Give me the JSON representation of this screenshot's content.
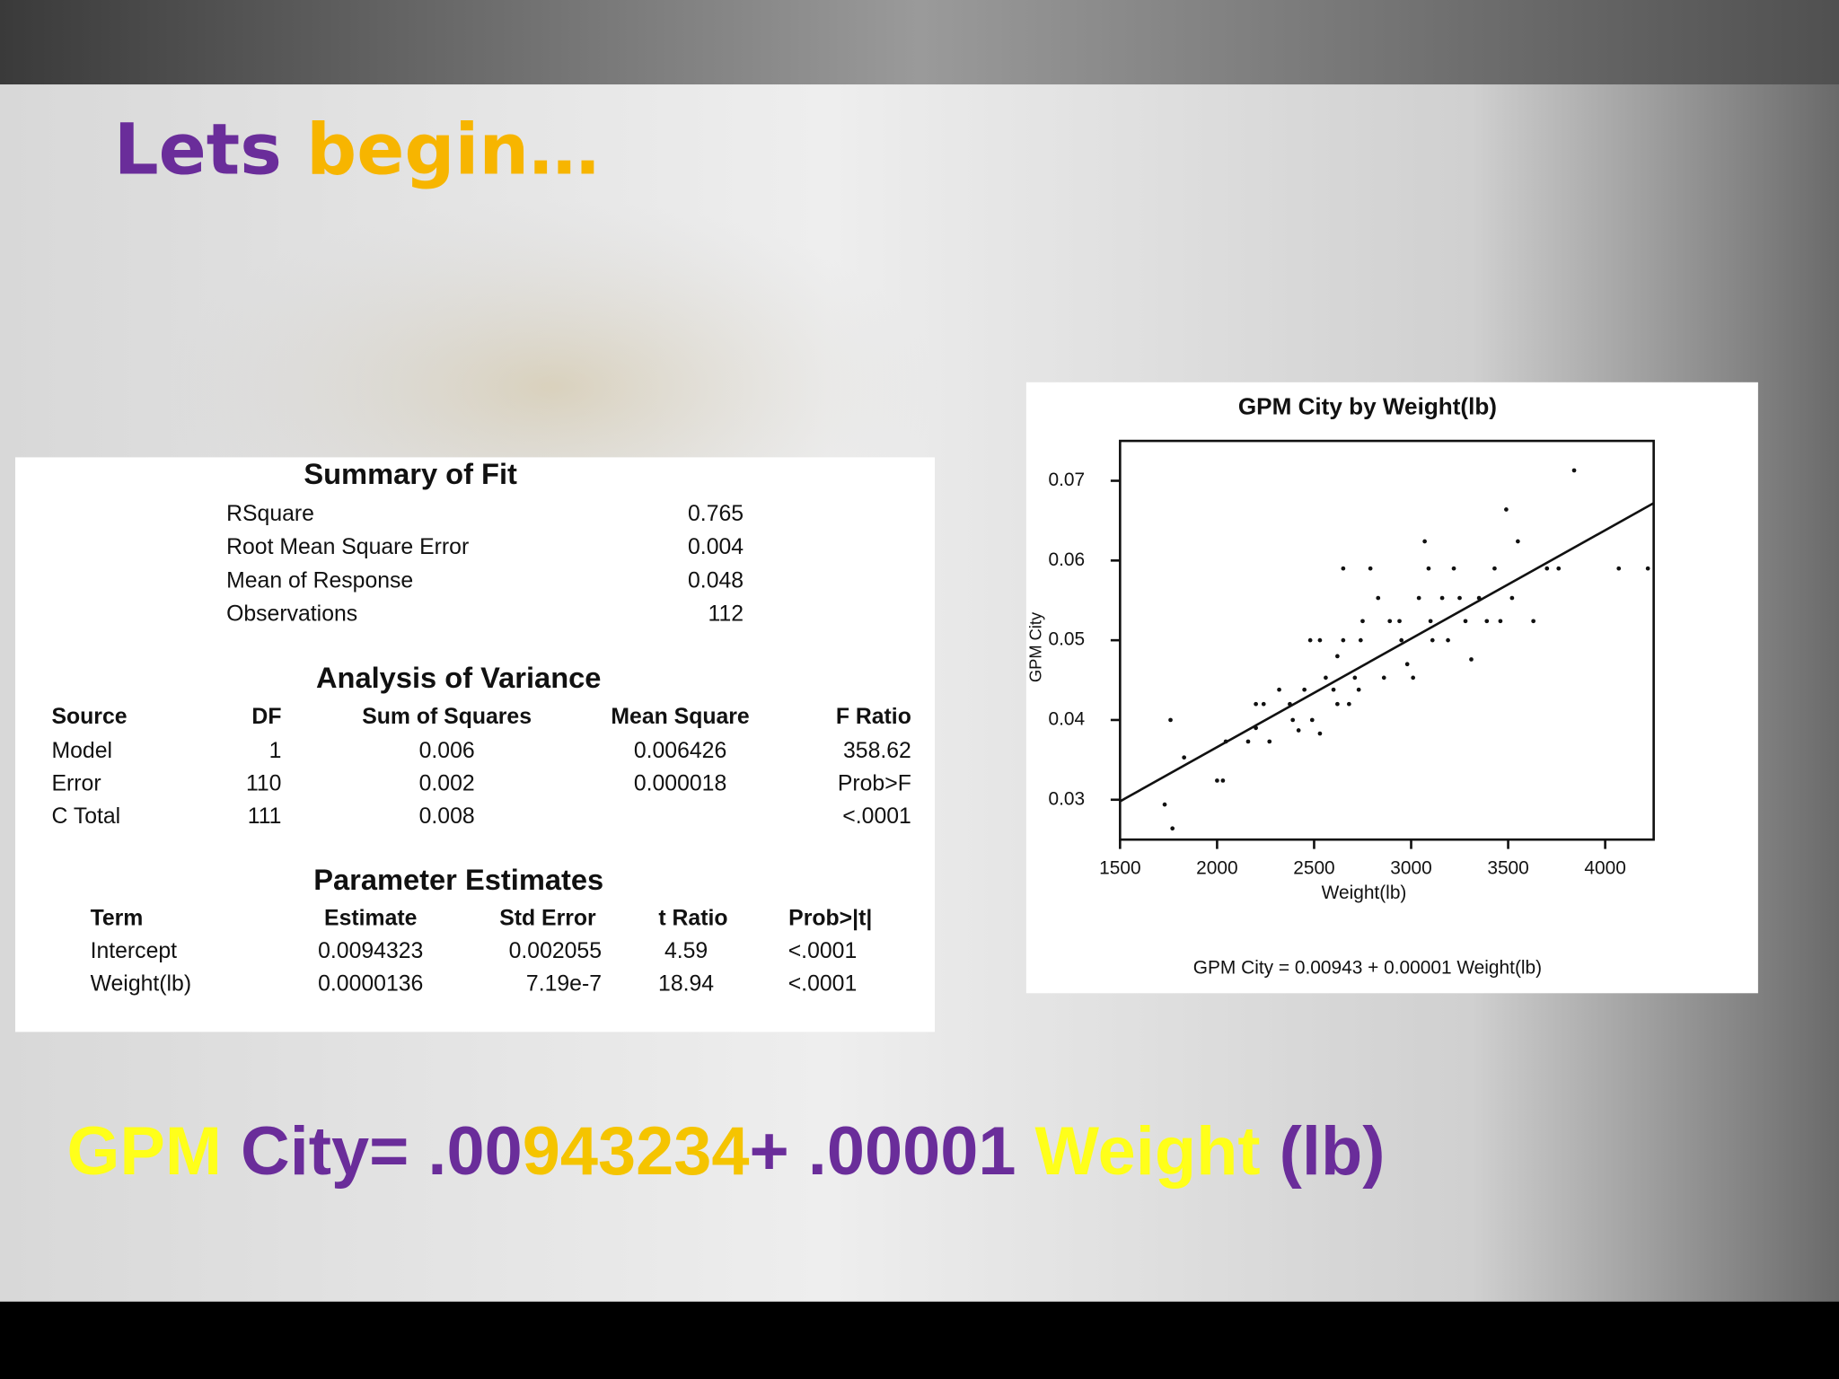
{
  "title": [
    {
      "text": "Lets ",
      "color": "#6a2d9a"
    },
    {
      "text": "begin…",
      "color": "#f7b500"
    }
  ],
  "summary": {
    "title": "Summary of Fit",
    "rows": [
      [
        "RSquare",
        "0.765"
      ],
      [
        "Root Mean Square Error",
        "0.004"
      ],
      [
        "Mean of Response",
        "0.048"
      ],
      [
        "Observations",
        "112"
      ]
    ]
  },
  "anova": {
    "title": "Analysis of Variance",
    "header": [
      "Source",
      "DF",
      "Sum of Squares",
      "Mean Square",
      "F Ratio"
    ],
    "rows": [
      [
        "Model",
        "1",
        "0.006",
        "0.006426",
        "358.62"
      ],
      [
        "Error",
        "110",
        "0.002",
        "0.000018",
        "Prob>F"
      ],
      [
        "C Total",
        "111",
        "0.008",
        null,
        "<.0001"
      ]
    ]
  },
  "parameters": {
    "title": "Parameter Estimates",
    "header": [
      "Term",
      "Estimate",
      "Std Error",
      "t Ratio",
      "Prob>|t|"
    ],
    "rows": [
      [
        "Intercept",
        "0.0094323",
        "0.002055",
        "4.59",
        "<.0001"
      ],
      [
        "Weight(lb)",
        "0.0000136",
        "7.19e-7",
        "18.94",
        "<.0001"
      ]
    ]
  },
  "chart_data": {
    "type": "scatter",
    "title": "GPM City by Weight(lb)",
    "x_label": "Weight(lb)",
    "y_label": "GPM City",
    "footer": "GPM City = 0.00943 + 0.00001 Weight(lb)",
    "color": "#111111",
    "x": [
      1730,
      1760,
      1770,
      1830,
      2000,
      2030,
      2045,
      2160,
      2200,
      2200,
      2240,
      2270,
      2320,
      2375,
      2390,
      2420,
      2450,
      2480,
      2530,
      2490,
      2530,
      2560,
      2600,
      2620,
      2650,
      2620,
      2650,
      2680,
      2710,
      2730,
      2740,
      2750,
      2790,
      2830,
      2860,
      2890,
      2940,
      2950,
      2980,
      3010,
      3040,
      3070,
      3090,
      3100,
      3110,
      3160,
      3190,
      3220,
      3250,
      3280,
      3310,
      3350,
      3390,
      3430,
      3460,
      3490,
      3520,
      3550,
      3630,
      3700,
      3760,
      3840,
      4070,
      4220
    ],
    "values": [
      0.0294,
      0.04,
      0.0264,
      0.0353,
      0.0324,
      0.0324,
      0.0373,
      0.0373,
      0.039,
      0.042,
      0.042,
      0.0373,
      0.0438,
      0.042,
      0.04,
      0.0387,
      0.0438,
      0.05,
      0.05,
      0.04,
      0.0383,
      0.0453,
      0.0438,
      0.042,
      0.05,
      0.048,
      0.059,
      0.042,
      0.0453,
      0.0438,
      0.05,
      0.0524,
      0.059,
      0.0553,
      0.0453,
      0.0524,
      0.0524,
      0.05,
      0.047,
      0.0453,
      0.0553,
      0.0624,
      0.059,
      0.0524,
      0.05,
      0.0553,
      0.05,
      0.059,
      0.0553,
      0.0524,
      0.0476,
      0.0553,
      0.0524,
      0.059,
      0.0524,
      0.0664,
      0.0553,
      0.0624,
      0.0524,
      0.059,
      0.059,
      0.0713,
      0.059,
      0.059
    ],
    "fit": {
      "x": [
        1500,
        4250
      ],
      "values": [
        0.0298,
        0.0672
      ]
    },
    "xlim": [
      1500,
      4250
    ],
    "ylim": [
      0.025,
      0.075
    ],
    "xticks": [
      1500,
      2000,
      2500,
      3000,
      3500,
      4000
    ],
    "yticks": [
      0.03,
      0.04,
      0.05,
      0.06,
      0.07
    ]
  },
  "equation": [
    {
      "text": "GPM",
      "color": "#ffff1a"
    },
    {
      "text": " City= .00",
      "color": "#6a2d9a"
    },
    {
      "text": "943234",
      "color": "#f5c400"
    },
    {
      "text": "+ .00001 ",
      "color": "#6a2d9a"
    },
    {
      "text": "Weight",
      "color": "#ffff1a"
    },
    {
      "text": " (lb)",
      "color": "#6a2d9a"
    }
  ]
}
